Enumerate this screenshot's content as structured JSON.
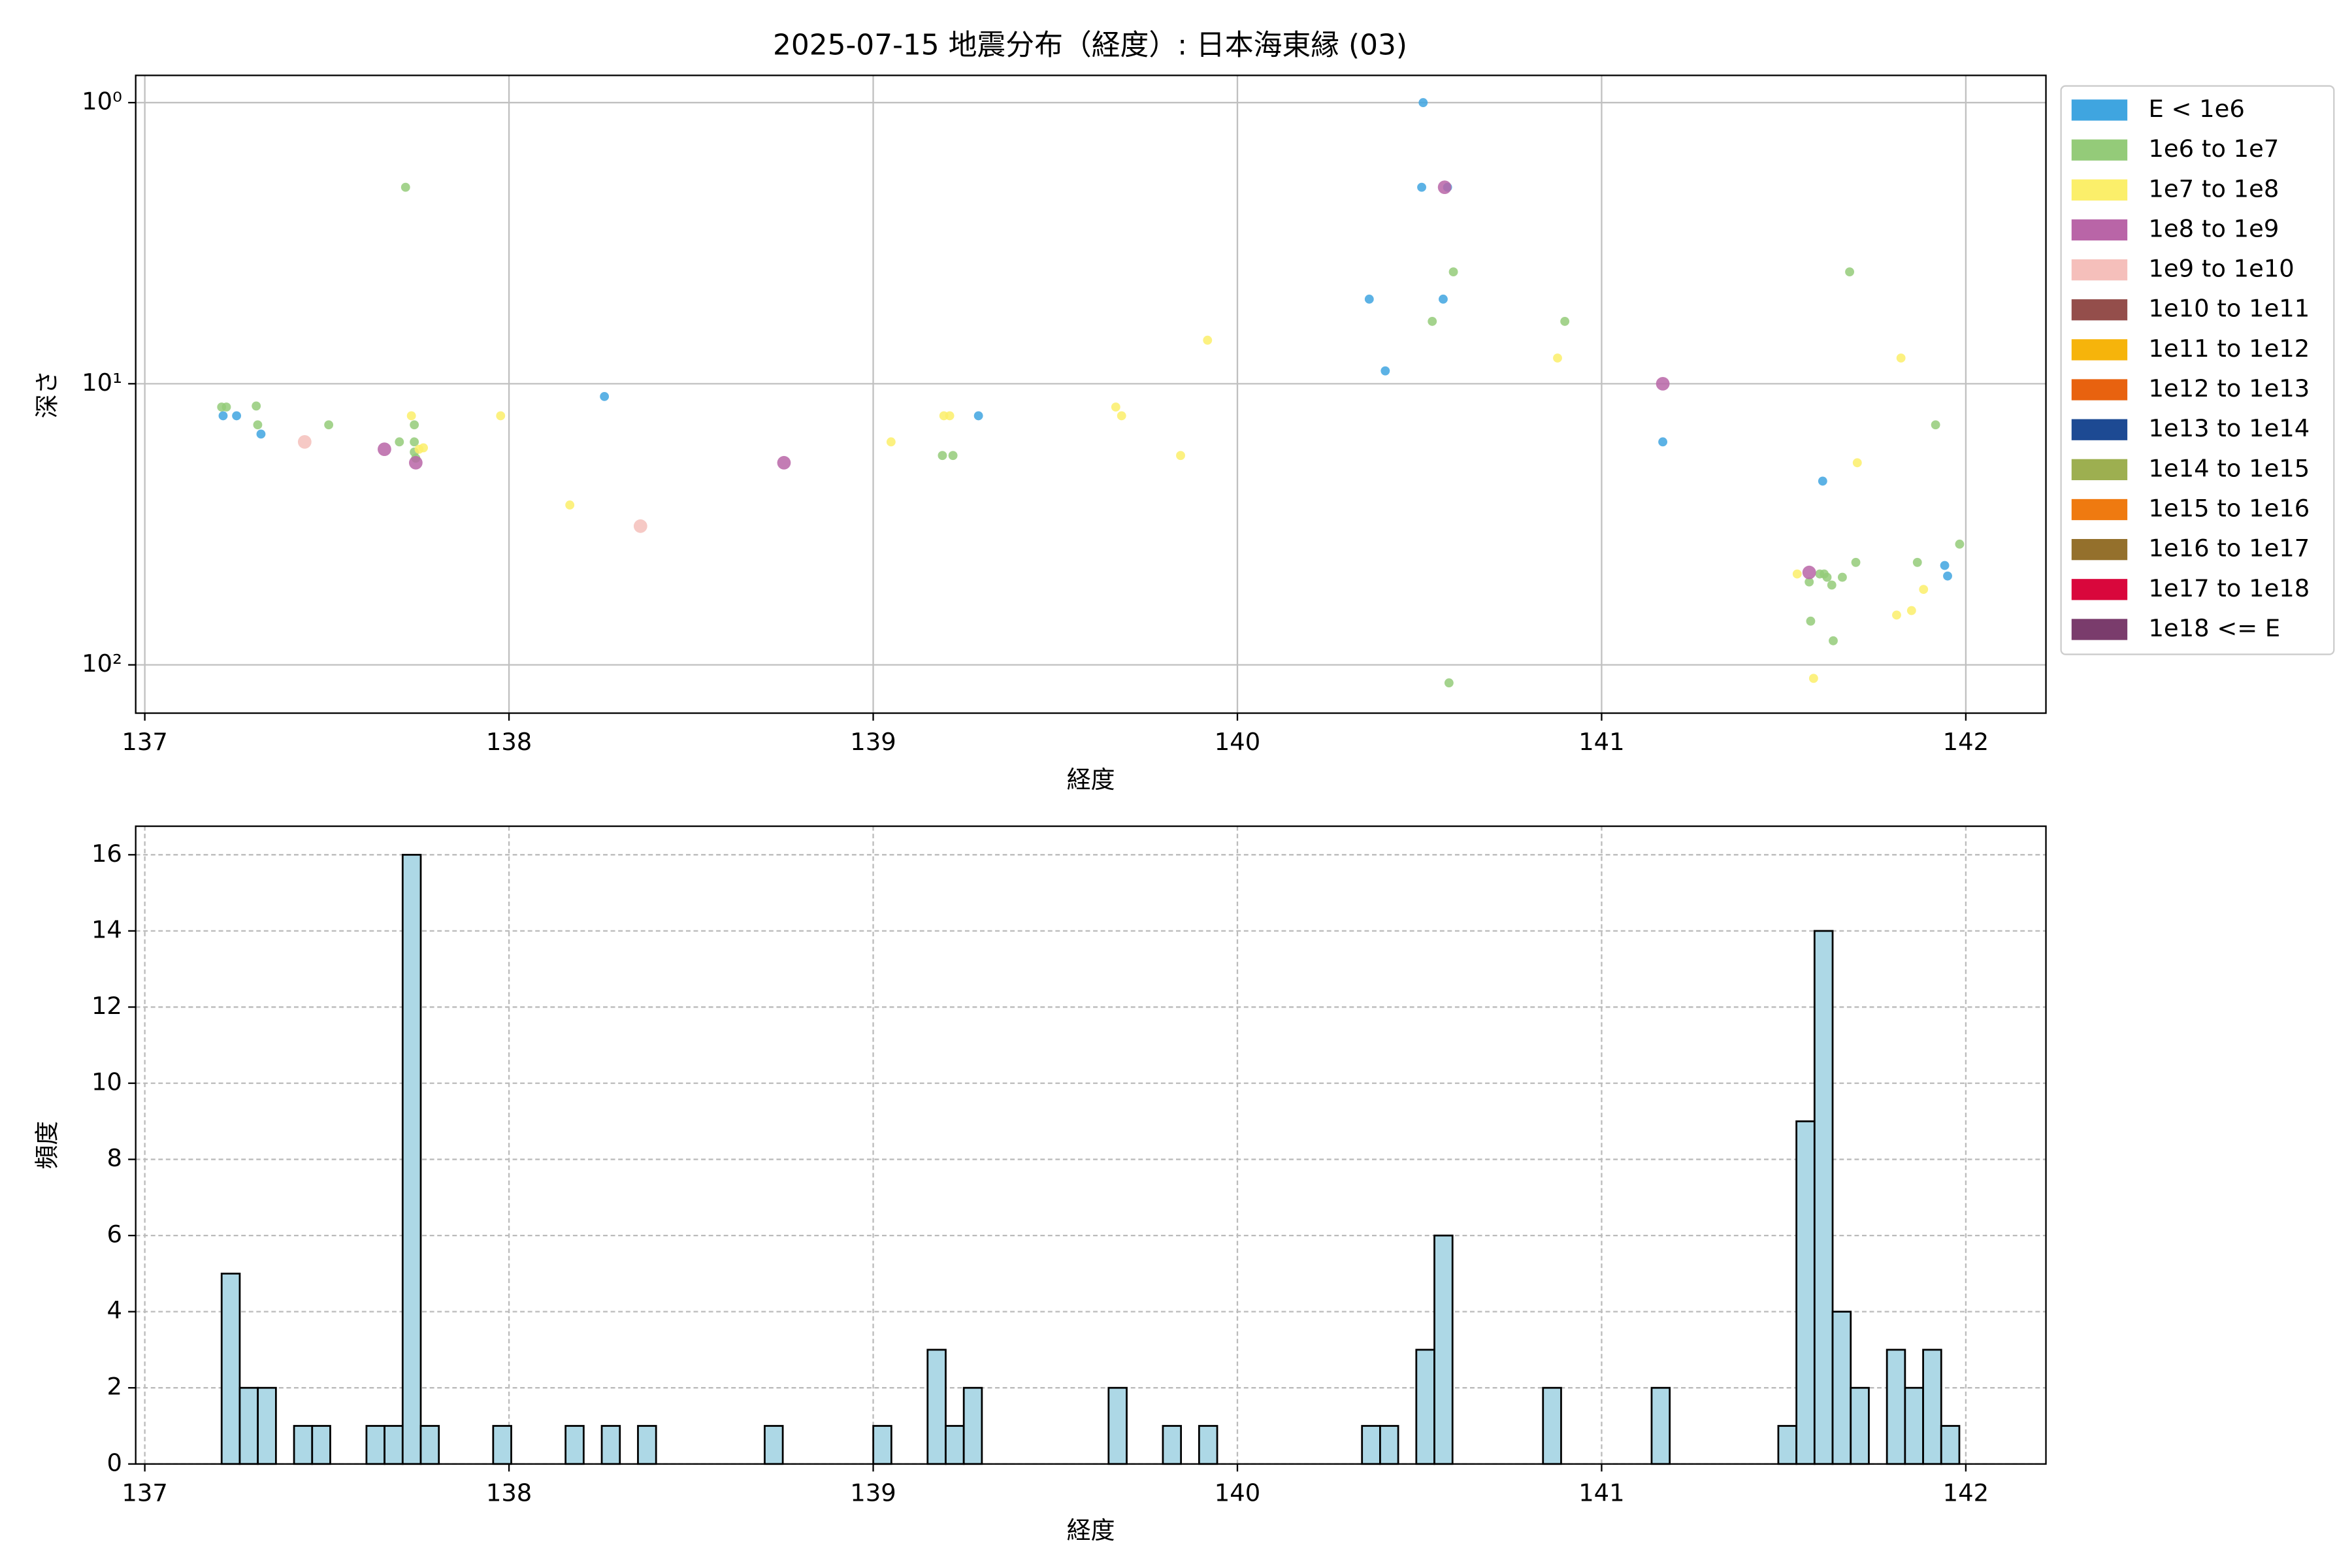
{
  "chart_data": [
    {
      "type": "scatter",
      "title": "2025-07-15 地震分布（経度）: 日本海東縁 (03)",
      "xlabel": "経度",
      "ylabel": "深さ",
      "xlim": [
        136.975,
        142.22
      ],
      "xticks": [
        137,
        138,
        139,
        140,
        141,
        142
      ],
      "ylim": [
        0.8,
        148.5
      ],
      "yscale": "log",
      "y_inverted": true,
      "yticks": [
        {
          "value": 1,
          "label": "10⁰"
        },
        {
          "value": 10,
          "label": "10¹"
        },
        {
          "value": 100,
          "label": "10²"
        }
      ],
      "grid": true,
      "legend": "right",
      "series": [
        {
          "name": "E < 1e6",
          "color": "#3fa5e0",
          "x": [
            137.215,
            137.252,
            137.319,
            138.262,
            140.51,
            140.506,
            140.577,
            140.362,
            140.565,
            140.406,
            141.168,
            141.607,
            141.942,
            141.95,
            139.289
          ],
          "values": [
            13.0,
            13.0,
            15.1,
            11.1,
            1.0,
            2.0,
            2.0,
            5.0,
            5.0,
            9.0,
            16.1,
            22.2,
            44.3,
            48.3,
            13.0
          ]
        },
        {
          "name": "1e6 to 1e7",
          "color": "#94cb79",
          "x": [
            137.211,
            137.224,
            137.306,
            137.31,
            137.505,
            137.716,
            137.699,
            137.74,
            137.74,
            137.74,
            137.744,
            139.19,
            139.219,
            140.535,
            140.593,
            140.899,
            140.581,
            141.681,
            141.917,
            141.983,
            141.867,
            141.698,
            141.57,
            141.599,
            141.619,
            141.632,
            141.661,
            141.611,
            141.574,
            141.636
          ],
          "values": [
            12.1,
            12.1,
            12.0,
            14.0,
            14.0,
            2.0,
            16.1,
            14.0,
            16.1,
            17.5,
            18.4,
            18.0,
            18.0,
            6.0,
            4.0,
            6.0,
            115.9,
            4.0,
            14.0,
            37.2,
            43.2,
            43.2,
            50.7,
            47.5,
            48.8,
            52.0,
            48.8,
            47.5,
            69.9,
            82.1
          ]
        },
        {
          "name": "1e7 to 1e8",
          "color": "#fbef6a",
          "x": [
            137.732,
            137.753,
            137.765,
            137.977,
            138.167,
            139.049,
            139.194,
            139.21,
            139.666,
            139.682,
            139.844,
            139.918,
            140.879,
            141.537,
            141.702,
            141.822,
            141.81,
            141.851,
            141.884,
            141.582
          ],
          "values": [
            13.0,
            17.1,
            16.9,
            13.0,
            27.0,
            16.1,
            13.0,
            13.0,
            12.1,
            13.0,
            18.0,
            7.0,
            8.1,
            47.5,
            19.1,
            8.1,
            66.5,
            64.1,
            53.9,
            111.7
          ]
        },
        {
          "name": "1e8 to 1e9",
          "color": "#b965a7",
          "x": [
            137.658,
            137.744,
            138.755,
            140.569,
            141.168,
            141.57
          ],
          "values": [
            17.1,
            19.1,
            19.1,
            2.0,
            10.0,
            46.9
          ]
        },
        {
          "name": "1e9 to 1e10",
          "color": "#f5bfbb",
          "x": [
            137.439,
            138.361
          ],
          "values": [
            16.1,
            32.1
          ]
        },
        {
          "name": "1e10 to 1e11",
          "color": "#944e4b",
          "x": [],
          "values": []
        },
        {
          "name": "1e11 to 1e12",
          "color": "#f6b40b",
          "x": [],
          "values": []
        },
        {
          "name": "1e12 to 1e13",
          "color": "#e8620f",
          "x": [],
          "values": []
        },
        {
          "name": "1e13 to 1e14",
          "color": "#1d4a93",
          "x": [],
          "values": []
        },
        {
          "name": "1e14 to 1e15",
          "color": "#9daf50",
          "x": [],
          "values": []
        },
        {
          "name": "1e15 to 1e16",
          "color": "#ef7a10",
          "x": [],
          "values": []
        },
        {
          "name": "1e16 to 1e17",
          "color": "#94702c",
          "x": [],
          "values": []
        },
        {
          "name": "1e17 to 1e18",
          "color": "#d9073c",
          "x": [],
          "values": []
        },
        {
          "name": "1e18 <= E",
          "color": "#7a3c6c",
          "x": [],
          "values": []
        }
      ]
    },
    {
      "type": "histogram",
      "xlabel": "経度",
      "ylabel": "頻度",
      "color": "#add8e6",
      "edgecolor": "#000000",
      "grid": true,
      "xlim": [
        136.975,
        142.22
      ],
      "xticks": [
        137,
        138,
        139,
        140,
        141,
        142
      ],
      "ylim": [
        0,
        16.75
      ],
      "yticks": [
        0,
        2,
        4,
        6,
        8,
        10,
        12,
        14,
        16
      ],
      "bins": [
        137.211,
        137.2607,
        137.3104,
        137.3601,
        137.4098,
        137.4595,
        137.5092,
        137.5589,
        137.6086,
        137.6583,
        137.708,
        137.7577,
        137.8074,
        137.8571,
        137.9068,
        137.9565,
        138.0062,
        138.0559,
        138.1056,
        138.1553,
        138.205,
        138.2547,
        138.3044,
        138.3541,
        138.4038,
        138.4535,
        138.5032,
        138.5529,
        138.6026,
        138.6523,
        138.702,
        138.7517,
        138.8014,
        138.8511,
        138.9008,
        138.9505,
        139.0002,
        139.0499,
        139.0996,
        139.1493,
        139.199,
        139.2487,
        139.2984,
        139.3481,
        139.3978,
        139.4475,
        139.4972,
        139.5469,
        139.5966,
        139.6463,
        139.696,
        139.7457,
        139.7954,
        139.8451,
        139.8948,
        139.9445,
        139.9942,
        140.0439,
        140.0936,
        140.1433,
        140.193,
        140.2427,
        140.2924,
        140.3421,
        140.3918,
        140.4415,
        140.4912,
        140.5409,
        140.5906,
        140.6403,
        140.69,
        140.7397,
        140.7894,
        140.8391,
        140.8888,
        140.9385,
        140.9882,
        141.0379,
        141.0876,
        141.1373,
        141.187,
        141.2367,
        141.2864,
        141.3361,
        141.3858,
        141.4355,
        141.4852,
        141.5349,
        141.5846,
        141.6343,
        141.684,
        141.7337,
        141.7834,
        141.8331,
        141.8828,
        141.9325,
        141.9822
      ],
      "values": [
        5,
        2,
        2,
        0,
        1,
        1,
        0,
        0,
        1,
        1,
        16,
        1,
        0,
        0,
        0,
        1,
        0,
        0,
        0,
        1,
        0,
        1,
        0,
        1,
        0,
        0,
        0,
        0,
        0,
        0,
        1,
        0,
        0,
        0,
        0,
        0,
        1,
        0,
        0,
        3,
        1,
        2,
        0,
        0,
        0,
        0,
        0,
        0,
        0,
        2,
        0,
        0,
        1,
        0,
        1,
        0,
        0,
        0,
        0,
        0,
        0,
        0,
        0,
        1,
        1,
        0,
        3,
        6,
        0,
        0,
        0,
        0,
        0,
        2,
        0,
        0,
        0,
        0,
        0,
        2,
        0,
        0,
        0,
        0,
        0,
        0,
        1,
        9,
        14,
        4,
        2,
        0,
        3,
        2,
        3,
        1
      ]
    }
  ]
}
